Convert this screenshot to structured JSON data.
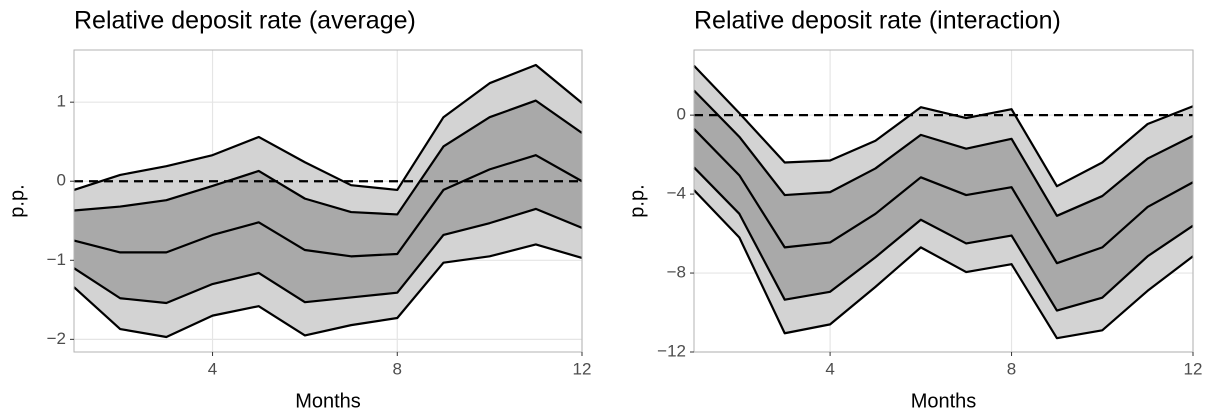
{
  "chart_data": [
    {
      "type": "fan",
      "title": "Relative deposit rate (average)",
      "x_label": "Months",
      "y_label": "p.p.",
      "x": [
        1,
        2,
        3,
        4,
        5,
        6,
        7,
        8,
        9,
        10,
        11,
        12
      ],
      "xlim": [
        1,
        12
      ],
      "xticks": [
        4,
        8,
        12
      ],
      "ylim": [
        -2.16,
        1.66
      ],
      "yticks": [
        {
          "value": -2,
          "label": "−2"
        },
        {
          "value": -1,
          "label": "−1"
        },
        0,
        1
      ],
      "hline": 0,
      "grid": true,
      "line_color": "#000000",
      "band_colors": [
        "#d3d3d3",
        "#a9a9a9"
      ],
      "series": [
        {
          "values": [
            -1.34,
            -1.87,
            -1.97,
            -1.7,
            -1.58,
            -1.95,
            -1.82,
            -1.73,
            -1.03,
            -0.95,
            -0.8,
            -0.97
          ]
        },
        {
          "values": [
            -1.1,
            -1.48,
            -1.54,
            -1.3,
            -1.16,
            -1.53,
            -1.47,
            -1.41,
            -0.68,
            -0.53,
            -0.35,
            -0.59
          ]
        },
        {
          "values": [
            -0.75,
            -0.9,
            -0.9,
            -0.68,
            -0.52,
            -0.87,
            -0.95,
            -0.92,
            -0.11,
            0.15,
            0.33,
            0.0
          ]
        },
        {
          "values": [
            -0.37,
            -0.32,
            -0.24,
            -0.06,
            0.13,
            -0.22,
            -0.39,
            -0.42,
            0.44,
            0.81,
            1.02,
            0.61
          ]
        },
        {
          "values": [
            -0.11,
            0.08,
            0.19,
            0.33,
            0.56,
            0.24,
            -0.05,
            -0.11,
            0.81,
            1.24,
            1.47,
            0.99
          ]
        }
      ]
    },
    {
      "type": "fan",
      "title": "Relative deposit rate (interaction)",
      "x_label": "Months",
      "y_label": "p.p.",
      "x": [
        1,
        2,
        3,
        4,
        5,
        6,
        7,
        8,
        9,
        10,
        11,
        12
      ],
      "xlim": [
        1,
        12
      ],
      "xticks": [
        4,
        8,
        12
      ],
      "ylim": [
        -12.0,
        3.3
      ],
      "yticks": [
        {
          "value": -12,
          "label": "−12"
        },
        {
          "value": -8,
          "label": "−8"
        },
        {
          "value": -4,
          "label": "−4"
        },
        0
      ],
      "hline": 0,
      "grid": true,
      "line_color": "#000000",
      "band_colors": [
        "#d3d3d3",
        "#a9a9a9"
      ],
      "series": [
        {
          "values": [
            -3.8,
            -6.2,
            -11.05,
            -10.6,
            -8.7,
            -6.7,
            -7.95,
            -7.55,
            -11.3,
            -10.9,
            -8.9,
            -7.15
          ]
        },
        {
          "values": [
            -2.65,
            -5.0,
            -9.35,
            -8.95,
            -7.2,
            -5.3,
            -6.5,
            -6.1,
            -9.9,
            -9.25,
            -7.15,
            -5.6
          ]
        },
        {
          "values": [
            -0.7,
            -3.05,
            -6.7,
            -6.45,
            -5.0,
            -3.15,
            -4.05,
            -3.65,
            -7.5,
            -6.7,
            -4.65,
            -3.4
          ]
        },
        {
          "values": [
            1.25,
            -1.1,
            -4.05,
            -3.9,
            -2.7,
            -1.0,
            -1.7,
            -1.2,
            -5.1,
            -4.1,
            -2.2,
            -1.05
          ]
        },
        {
          "values": [
            2.5,
            0.1,
            -2.4,
            -2.3,
            -1.3,
            0.4,
            -0.15,
            0.3,
            -3.6,
            -2.4,
            -0.45,
            0.45
          ]
        }
      ]
    }
  ]
}
